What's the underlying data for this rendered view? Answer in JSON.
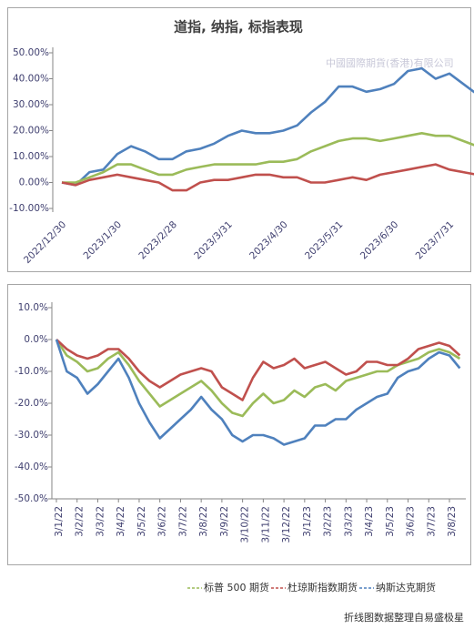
{
  "chart_data": [
    {
      "type": "line",
      "title": "道指, 纳指, 标指表现",
      "watermark": "中國國際期貨(香港)有限公司",
      "categories": [
        "2022/12/30",
        null,
        null,
        null,
        "2023/1/30",
        null,
        null,
        null,
        "2023/2/28",
        null,
        null,
        null,
        "2023/3/31",
        null,
        null,
        null,
        "2023/4/30",
        null,
        null,
        null,
        "2023/5/31",
        null,
        null,
        null,
        "2023/6/30",
        null,
        null,
        null,
        "2023/7/31",
        null,
        null,
        null
      ],
      "series": [
        {
          "color": "#4f81bd",
          "values": [
            0,
            -1,
            4,
            5,
            11,
            14,
            12,
            9,
            9,
            12,
            13,
            15,
            18,
            20,
            19,
            19,
            20,
            22,
            27,
            31,
            37,
            37,
            35,
            36,
            38,
            43,
            44,
            40,
            42,
            38,
            34,
            35.5
          ]
        },
        {
          "color": "#9bbb59",
          "values": [
            0,
            0,
            2,
            4,
            7,
            7,
            5,
            3,
            3,
            5,
            6,
            7,
            7,
            7,
            7,
            8,
            8,
            9,
            12,
            14,
            16,
            17,
            17,
            16,
            17,
            18,
            19,
            18,
            18,
            16,
            14,
            13.5
          ]
        },
        {
          "color": "#c0504d",
          "values": [
            0,
            -1,
            1,
            2,
            3,
            2,
            1,
            0,
            -3,
            -3,
            0,
            1,
            1,
            2,
            3,
            3,
            2,
            2,
            0,
            0,
            1,
            2,
            1,
            3,
            4,
            5,
            6,
            7,
            5,
            4,
            3,
            2.5
          ]
        }
      ],
      "ylim": [
        -10,
        50
      ],
      "yticks": [
        {
          "value": -10,
          "label": "-10.00%"
        },
        {
          "value": 0,
          "label": "0.00%"
        },
        {
          "value": 10,
          "label": "10.00%"
        },
        {
          "value": 20,
          "label": "20.00%"
        },
        {
          "value": 30,
          "label": "30.00%"
        },
        {
          "value": 40,
          "label": "40.00%"
        },
        {
          "value": 50,
          "label": "50.00%"
        }
      ]
    },
    {
      "type": "line",
      "source": "折线图数据整理自易盛极星",
      "categories": [
        "3/1/22",
        null,
        "3/2/22",
        null,
        "3/3/22",
        null,
        "3/4/22",
        null,
        "3/5/22",
        null,
        "3/6/22",
        null,
        "3/7/22",
        null,
        "3/8/22",
        null,
        "3/9/22",
        null,
        "3/10/22",
        null,
        "3/11/22",
        null,
        "3/12/22",
        null,
        "3/1/23",
        null,
        "3/2/23",
        null,
        "3/3/23",
        null,
        "3/4/23",
        null,
        "3/5/23",
        null,
        "3/6/23",
        null,
        "3/7/23",
        null,
        "3/8/23",
        null
      ],
      "series": [
        {
          "name": "标普 500 期货",
          "color": "#9bbb59",
          "values": [
            0,
            -5,
            -7,
            -10,
            -9,
            -6,
            -4,
            -8,
            -13,
            -17,
            -21,
            -19,
            -17,
            -15,
            -13,
            -16,
            -20,
            -23,
            -24,
            -20,
            -17,
            -20,
            -19,
            -16,
            -18,
            -15,
            -14,
            -16,
            -13,
            -12,
            -11,
            -10,
            -10,
            -8,
            -7,
            -6,
            -4,
            -3,
            -4,
            -6
          ]
        },
        {
          "name": "杜琼斯指数期货",
          "color": "#c0504d",
          "values": [
            0,
            -3,
            -5,
            -6,
            -5,
            -3,
            -3,
            -6,
            -10,
            -13,
            -15,
            -13,
            -11,
            -10,
            -9,
            -10,
            -15,
            -17,
            -19,
            -12,
            -7,
            -9,
            -8,
            -6,
            -9,
            -8,
            -7,
            -9,
            -11,
            -10,
            -7,
            -7,
            -8,
            -8,
            -6,
            -3,
            -2,
            -1,
            -2,
            -5
          ]
        },
        {
          "name": "纳斯达克期货",
          "color": "#4f81bd",
          "values": [
            0,
            -10,
            -12,
            -17,
            -14,
            -10,
            -6,
            -12,
            -20,
            -26,
            -31,
            -28,
            -25,
            -22,
            -18,
            -22,
            -25,
            -30,
            -32,
            -30,
            -30,
            -31,
            -33,
            -32,
            -31,
            -27,
            -27,
            -25,
            -25,
            -22,
            -20,
            -18,
            -17,
            -12,
            -10,
            -9,
            -6,
            -4,
            -5,
            -9
          ]
        }
      ],
      "ylim": [
        -50,
        10
      ],
      "yticks": [
        {
          "value": -50,
          "label": "-50.0%"
        },
        {
          "value": -40,
          "label": "-40.0%"
        },
        {
          "value": -30,
          "label": "-30.0%"
        },
        {
          "value": -20,
          "label": "-20.0%"
        },
        {
          "value": -10,
          "label": "-10.0%"
        },
        {
          "value": 0,
          "label": "0.0%"
        },
        {
          "value": 10,
          "label": "10.0%"
        }
      ]
    }
  ]
}
